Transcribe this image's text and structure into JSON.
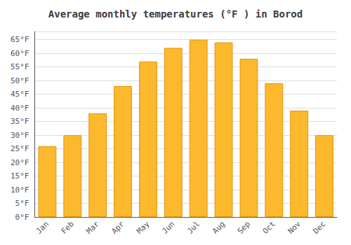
{
  "chart_data": {
    "type": "bar",
    "title": "Average monthly temperatures (°F ) in Borod",
    "categories": [
      "Jan",
      "Feb",
      "Mar",
      "Apr",
      "May",
      "Jun",
      "Jul",
      "Aug",
      "Sep",
      "Oct",
      "Nov",
      "Dec"
    ],
    "values": [
      26,
      30,
      38,
      48,
      57,
      62,
      65,
      64,
      58,
      49,
      39,
      30
    ],
    "color": "#FDB92E",
    "ylim": [
      0,
      68
    ],
    "yticks": [
      {
        "value": 0,
        "label": "0°F"
      },
      {
        "value": 5,
        "label": "5°F"
      },
      {
        "value": 10,
        "label": "10°F"
      },
      {
        "value": 15,
        "label": "15°F"
      },
      {
        "value": 20,
        "label": "20°F"
      },
      {
        "value": 25,
        "label": "25°F"
      },
      {
        "value": 30,
        "label": "30°F"
      },
      {
        "value": 35,
        "label": "35°F"
      },
      {
        "value": 40,
        "label": "40°F"
      },
      {
        "value": 45,
        "label": "45°F"
      },
      {
        "value": 50,
        "label": "50°F"
      },
      {
        "value": 55,
        "label": "55°F"
      },
      {
        "value": 60,
        "label": "60°F"
      },
      {
        "value": 65,
        "label": "65°F"
      }
    ],
    "grid": true
  }
}
